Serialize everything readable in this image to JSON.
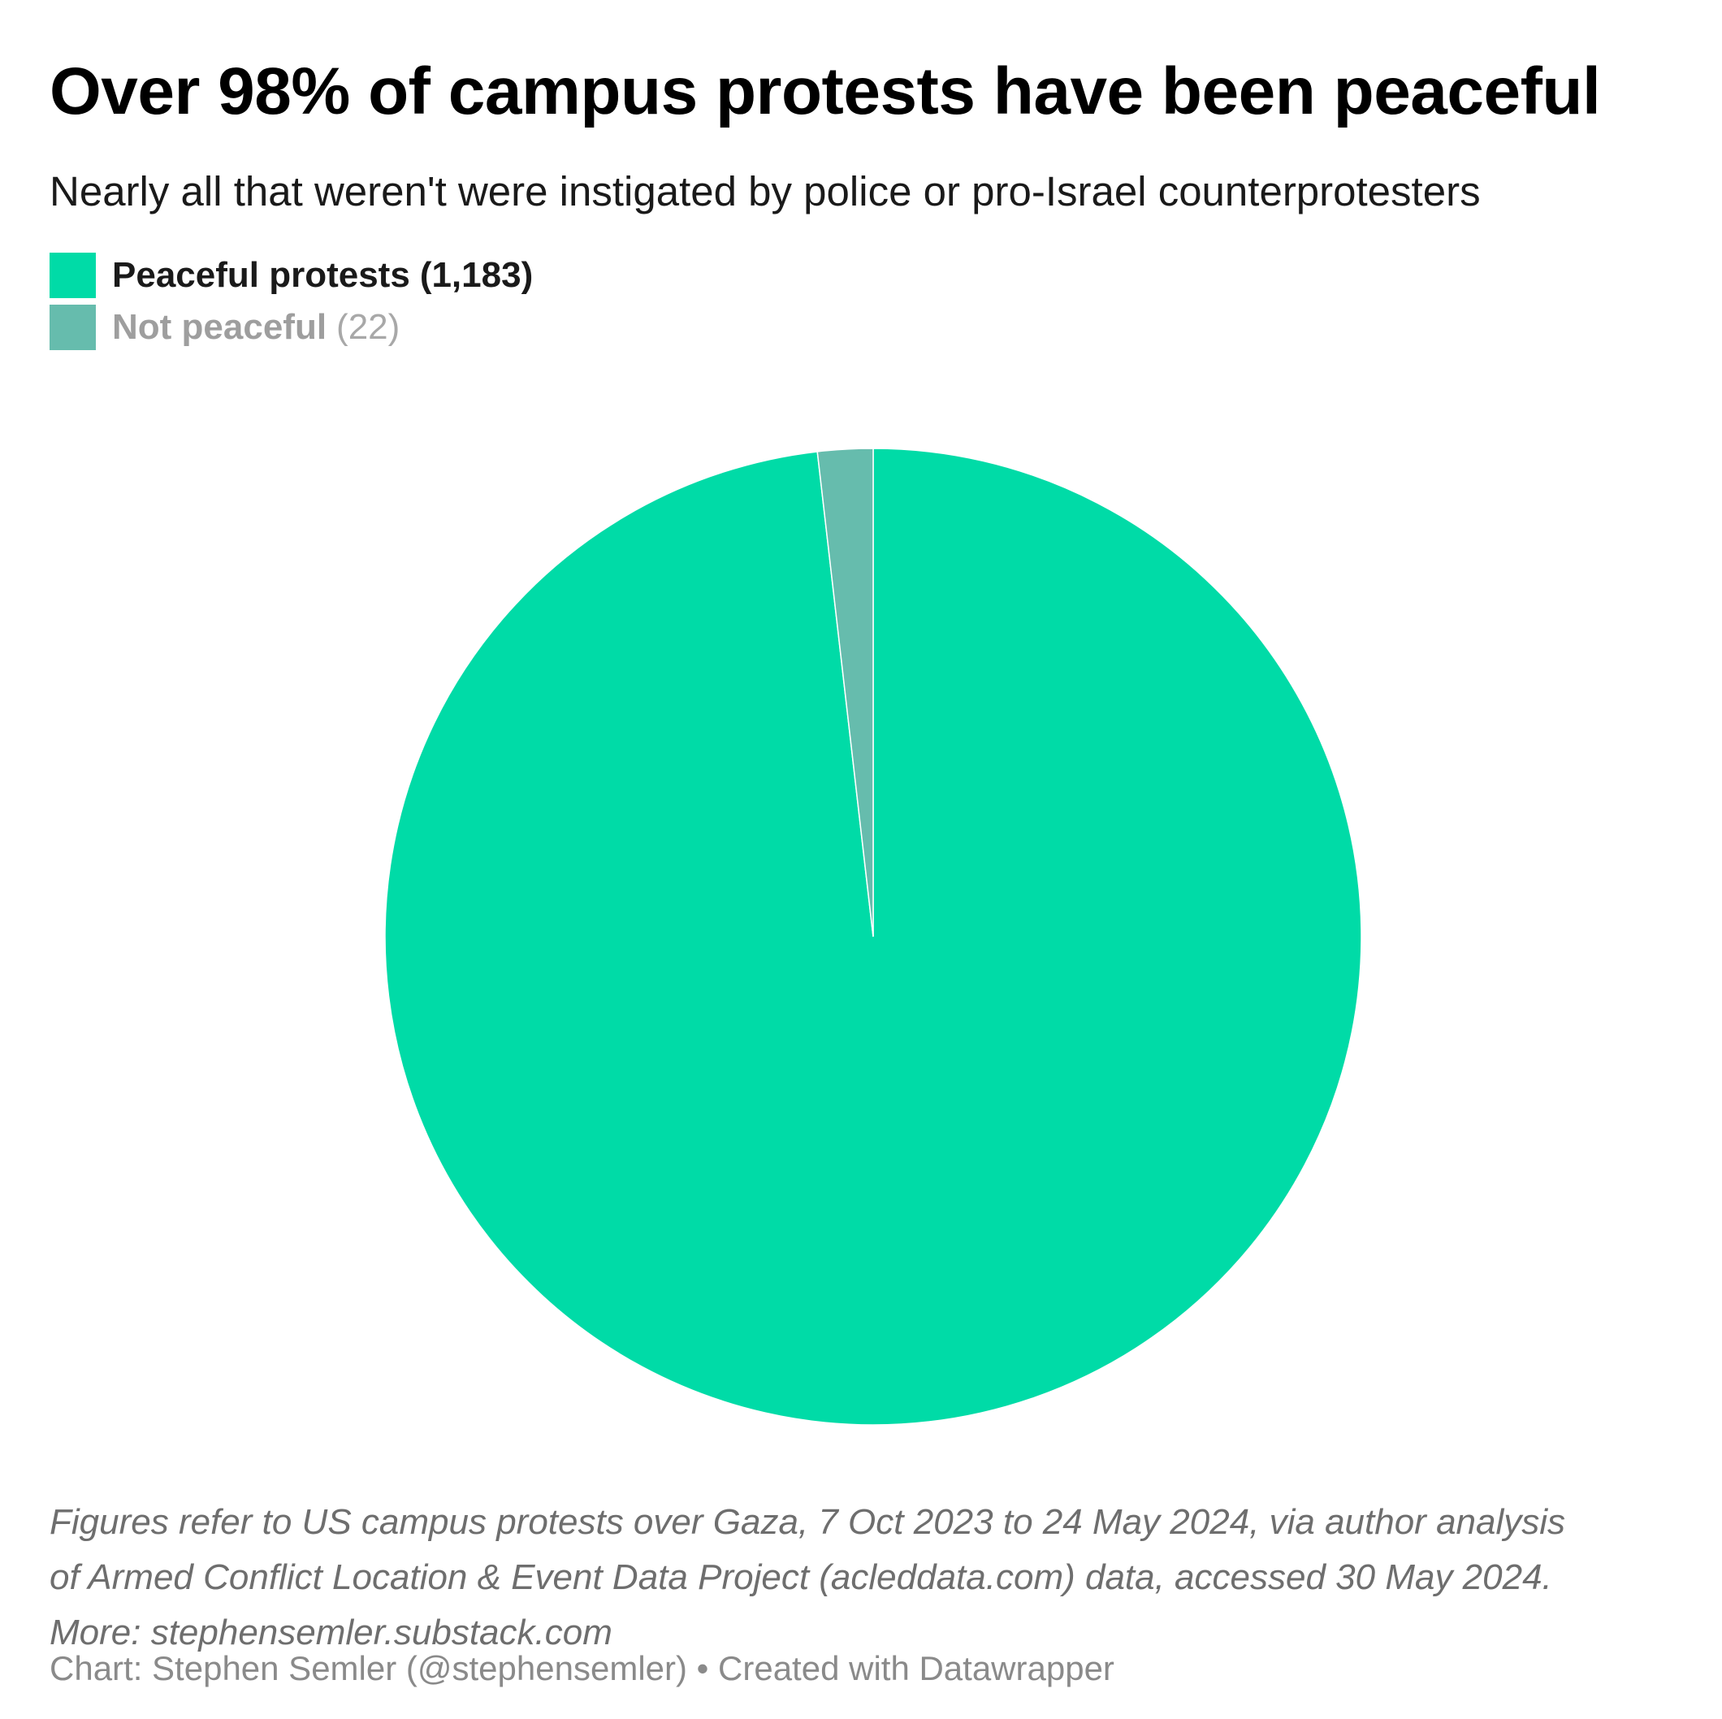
{
  "title": "Over 98% of campus protests have been peaceful",
  "subtitle": "Nearly all that weren't were instigated by police or pro-Israel counterprotesters",
  "notes": {
    "line1": "Figures refer to US campus protests over Gaza, 7 Oct 2023 to 24 May 2024, via author analysis",
    "line2": "of Armed Conflict Location & Event Data Project (acleddata.com) data, accessed 30 May 2024.",
    "line3": "More: stephensemler.substack.com"
  },
  "credit": "Chart: Stephen Semler (@stephensemler) • Created with Datawrapper",
  "chart_data": {
    "type": "pie",
    "categories": [
      "Peaceful protests",
      "Not peaceful"
    ],
    "values": [
      1183,
      22
    ],
    "legend_counts": [
      "(1,183)",
      "(22)"
    ],
    "colors": [
      "#00dba7",
      "#66bcad"
    ],
    "legend_placement": "top-left"
  }
}
